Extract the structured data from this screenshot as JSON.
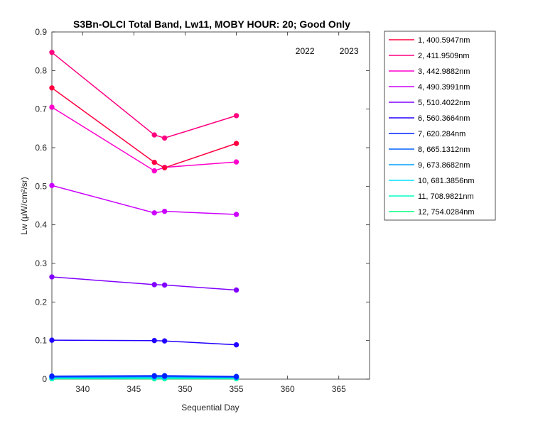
{
  "chart_data": {
    "type": "line",
    "title": "S3Bn-OLCI Total Band,  Lw11, MOBY HOUR: 20;  Good Only",
    "xlabel": "Sequential Day",
    "ylabel": "Lw (μW/cm²/sr)",
    "xlim": [
      337,
      368
    ],
    "ylim": [
      0,
      0.9
    ],
    "xticks": [
      340,
      345,
      350,
      355,
      360,
      365
    ],
    "yticks": [
      0,
      0.1,
      0.2,
      0.3,
      0.4,
      0.5,
      0.6,
      0.7,
      0.8,
      0.9
    ],
    "annotations": [
      {
        "text": "2022",
        "x": 361.7,
        "y": 0.85
      },
      {
        "text": "2023",
        "x": 366.0,
        "y": 0.85
      }
    ],
    "legend_position": "outside-top-right",
    "x": [
      337,
      347,
      348,
      355
    ],
    "series": [
      {
        "name": "1, 400.5947nm",
        "color": "#ff0040",
        "values": [
          0.755,
          0.562,
          0.548,
          0.611
        ]
      },
      {
        "name": "2, 411.9509nm",
        "color": "#ff0080",
        "values": [
          0.847,
          0.633,
          0.625,
          0.683
        ]
      },
      {
        "name": "3, 442.9882nm",
        "color": "#ff00cc",
        "values": [
          0.705,
          0.54,
          0.549,
          0.563
        ]
      },
      {
        "name": "4, 490.3991nm",
        "color": "#cc00ff",
        "values": [
          0.502,
          0.431,
          0.435,
          0.427
        ]
      },
      {
        "name": "5, 510.4022nm",
        "color": "#8000ff",
        "values": [
          0.265,
          0.245,
          0.244,
          0.231
        ]
      },
      {
        "name": "6, 560.3664nm",
        "color": "#2000ff",
        "values": [
          0.101,
          0.1,
          0.099,
          0.089
        ]
      },
      {
        "name": "7,  620.284nm",
        "color": "#0020ff",
        "values": [
          0.008,
          0.009,
          0.009,
          0.007
        ]
      },
      {
        "name": "8, 665.1312nm",
        "color": "#0060ff",
        "values": [
          0.006,
          0.007,
          0.007,
          0.005
        ]
      },
      {
        "name": "9, 673.8682nm",
        "color": "#00a0ff",
        "values": [
          0.005,
          0.006,
          0.006,
          0.005
        ]
      },
      {
        "name": "10, 681.3856nm",
        "color": "#00e0ff",
        "values": [
          0.004,
          0.005,
          0.005,
          0.004
        ]
      },
      {
        "name": "11, 708.9821nm",
        "color": "#00ffc0",
        "values": [
          0.002,
          0.002,
          0.002,
          0.002
        ]
      },
      {
        "name": "12, 754.0284nm",
        "color": "#00ff80",
        "values": [
          0.001,
          0.001,
          0.001,
          0.001
        ]
      }
    ]
  }
}
